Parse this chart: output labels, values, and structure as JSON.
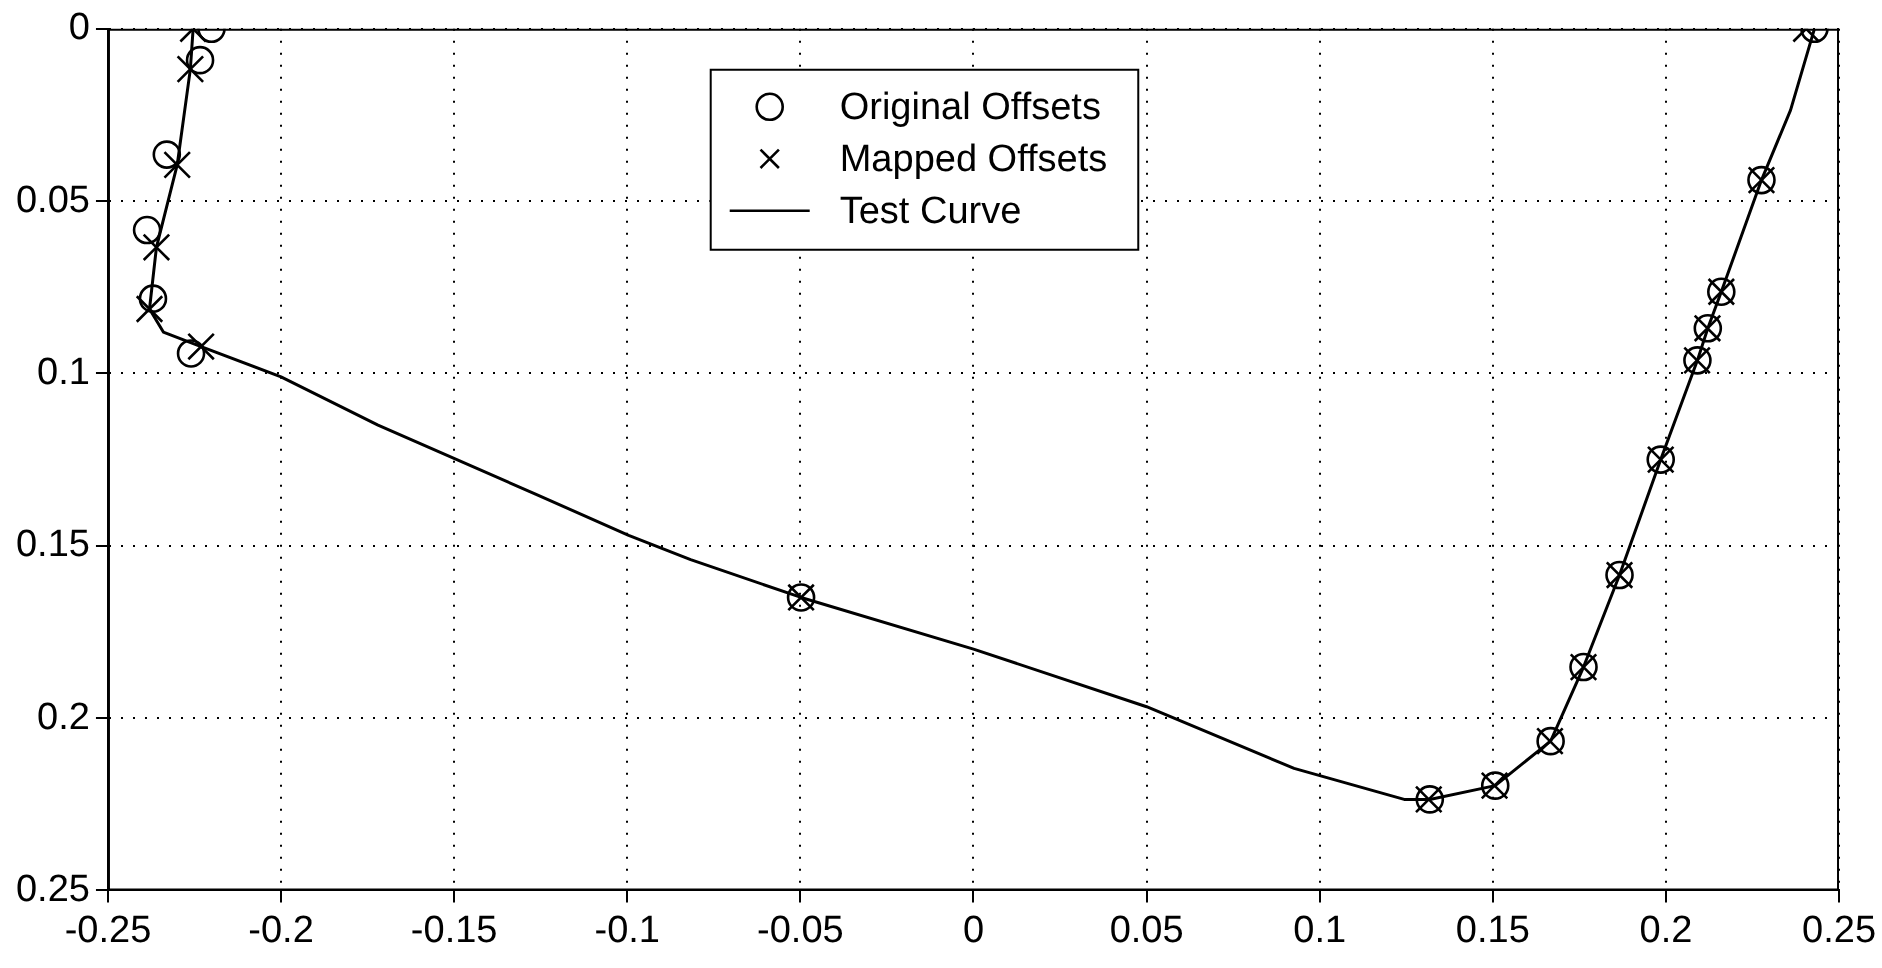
{
  "chart_data": {
    "type": "scatter",
    "xlim": [
      -0.25,
      0.25
    ],
    "xticks": [
      -0.25,
      -0.2,
      -0.15,
      -0.1,
      -0.05,
      0,
      0.05,
      0.1,
      0.15,
      0.2,
      0.25
    ],
    "ylim": [
      0.25,
      0
    ],
    "yticks": [
      0,
      0.05,
      0.1,
      0.15,
      0.2,
      0.25
    ],
    "grid": true,
    "legend": "top",
    "series": [
      {
        "name": "Original Offsets",
        "type": "scatter",
        "marker": "circle",
        "color": "#000000",
        "x": [
          -0.2201,
          -0.2234,
          -0.233,
          -0.2387,
          -0.237,
          -0.226,
          -0.0498,
          0.1318,
          0.1507,
          0.1667,
          0.1762,
          0.1866,
          0.1985,
          0.2091,
          0.2121,
          0.216,
          0.2276,
          0.2429
        ],
        "values": [
          0,
          0.0091,
          0.0365,
          0.0584,
          0.0783,
          0.0942,
          0.165,
          0.2236,
          0.2196,
          0.2067,
          0.1852,
          0.1585,
          0.125,
          0.0962,
          0.0869,
          0.0763,
          0.0439,
          0
        ]
      },
      {
        "name": "Mapped Offsets",
        "type": "scatter",
        "marker": "cross",
        "color": "#000000",
        "x": [
          -0.2254,
          -0.2262,
          -0.23,
          -0.236,
          -0.238,
          -0.2231,
          -0.0498,
          0.1315,
          0.1505,
          0.1665,
          0.1762,
          0.1866,
          0.1985,
          0.209,
          0.212,
          0.216,
          0.2276,
          0.2405
        ],
        "values": [
          0,
          0.0117,
          0.0395,
          0.0634,
          0.0813,
          0.0922,
          0.165,
          0.2236,
          0.2196,
          0.2067,
          0.1852,
          0.1585,
          0.125,
          0.0962,
          0.0869,
          0.0763,
          0.0439,
          0
        ]
      },
      {
        "name": "Test Curve",
        "type": "line",
        "marker": "none",
        "line_style": "solid",
        "color": "#000000",
        "x": [
          -0.2254,
          -0.2262,
          -0.23,
          -0.236,
          -0.238,
          -0.234,
          -0.2231,
          -0.2,
          -0.172,
          -0.1265,
          -0.0996,
          -0.0817,
          -0.0498,
          0,
          0.05,
          0.0926,
          0.1244,
          0.1318,
          0.1507,
          0.1667,
          0.1762,
          0.1866,
          0.1985,
          0.2091,
          0.2121,
          0.216,
          0.2276,
          0.236,
          0.2429
        ],
        "values": [
          0,
          0.0117,
          0.0395,
          0.0634,
          0.0813,
          0.088,
          0.0922,
          0.101,
          0.115,
          0.135,
          0.147,
          0.154,
          0.165,
          0.18,
          0.1967,
          0.2146,
          0.2236,
          0.2236,
          0.2196,
          0.2067,
          0.1852,
          0.1585,
          0.125,
          0.0962,
          0.0869,
          0.0763,
          0.0439,
          0.0236,
          0
        ]
      }
    ]
  }
}
